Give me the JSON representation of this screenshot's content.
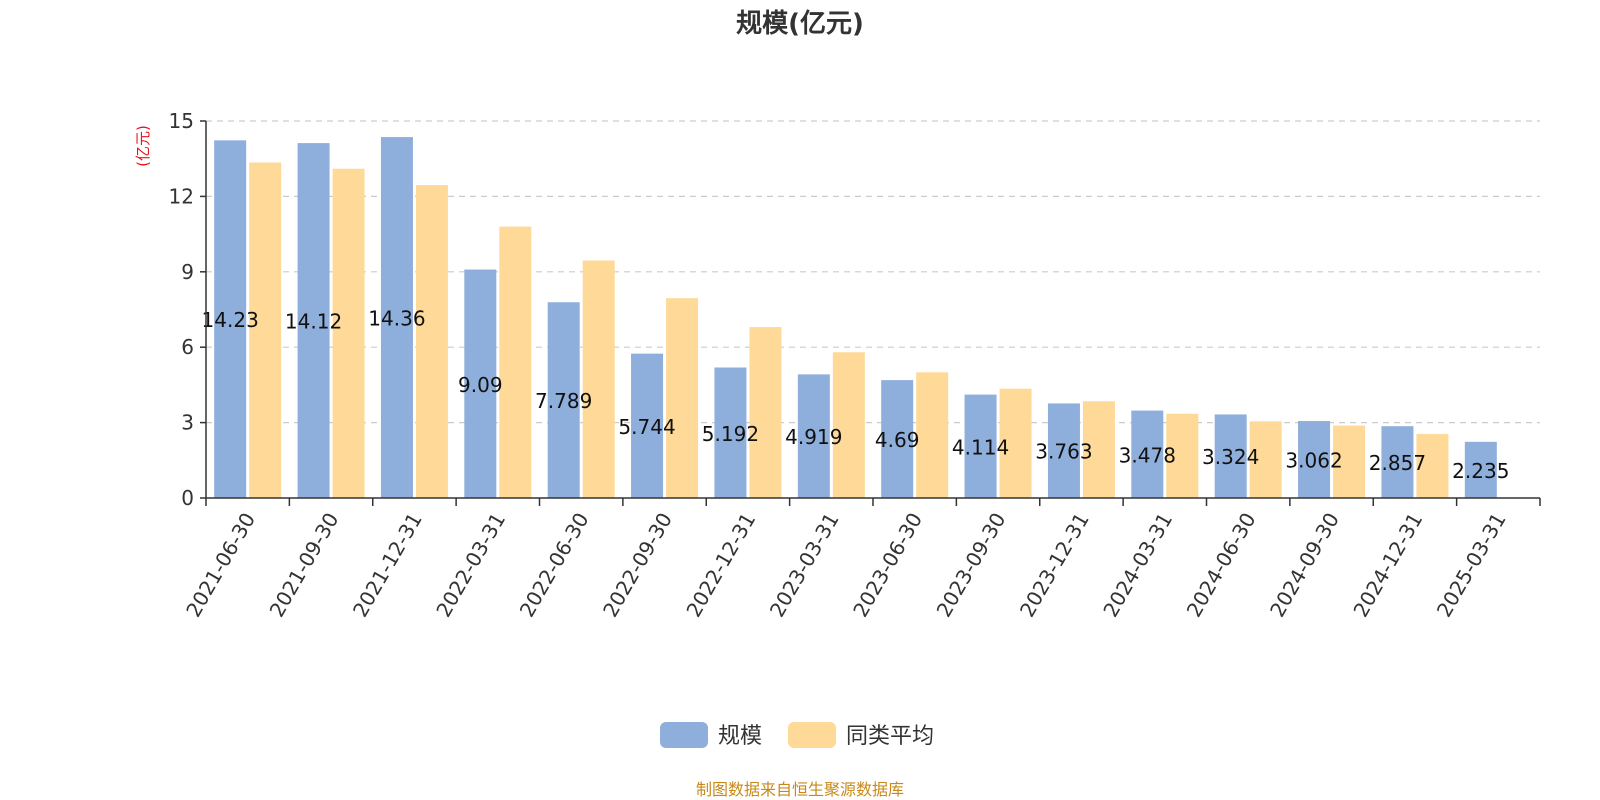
{
  "chart_data": {
    "type": "bar",
    "title": "规模(亿元)",
    "ylabel": "(亿元)",
    "ylim": [
      0,
      15
    ],
    "yticks": [
      0,
      3,
      6,
      9,
      12,
      15
    ],
    "grid": true,
    "legend_position": "bottom",
    "categories": [
      "2021-06-30",
      "2021-09-30",
      "2021-12-31",
      "2022-03-31",
      "2022-06-30",
      "2022-09-30",
      "2022-12-31",
      "2023-03-31",
      "2023-06-30",
      "2023-09-30",
      "2023-12-31",
      "2024-03-31",
      "2024-06-30",
      "2024-09-30",
      "2024-12-31",
      "2025-03-31"
    ],
    "series": [
      {
        "name": "规模",
        "color": "#8eaedb",
        "values": [
          14.23,
          14.12,
          14.36,
          9.09,
          7.789,
          5.744,
          5.192,
          4.919,
          4.69,
          4.114,
          3.763,
          3.478,
          3.324,
          3.062,
          2.857,
          2.235
        ],
        "labels": [
          "14.23",
          "14.12",
          "14.36",
          "9.09",
          "7.789",
          "5.744",
          "5.192",
          "4.919",
          "4.69",
          "4.114",
          "3.763",
          "3.478",
          "3.324",
          "3.062",
          "2.857",
          "2.235"
        ]
      },
      {
        "name": "同类平均",
        "color": "#fed998",
        "values": [
          13.35,
          13.1,
          12.45,
          10.8,
          9.45,
          7.95,
          6.8,
          5.8,
          5.0,
          4.35,
          3.85,
          3.35,
          3.05,
          2.88,
          2.55,
          null
        ]
      }
    ]
  },
  "source_note": "制图数据来自恒生聚源数据库"
}
